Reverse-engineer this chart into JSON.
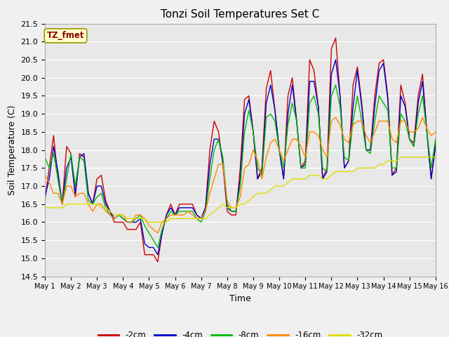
{
  "title": "Tonzi Soil Temperatures Set C",
  "xlabel": "Time",
  "ylabel": "Soil Temperature (C)",
  "ylim": [
    14.5,
    21.5
  ],
  "annotation": "TZ_fmet",
  "fig_bg": "#f0f0f0",
  "plot_bg": "#e8e8e8",
  "legend": [
    "-2cm",
    "-4cm",
    "-8cm",
    "-16cm",
    "-32cm"
  ],
  "colors": [
    "#cc0000",
    "#0000cc",
    "#00bb00",
    "#ff8800",
    "#dddd00"
  ],
  "xtick_labels": [
    "May 1",
    "May 2",
    "May 3",
    "May 4",
    "May 5",
    "May 6",
    "May 7",
    "May 8",
    "May 9",
    "May 10",
    "May 11",
    "May 12",
    "May 13",
    "May 14",
    "May 15",
    "May 16"
  ],
  "yticks": [
    14.5,
    15.0,
    15.5,
    16.0,
    16.5,
    17.0,
    17.5,
    18.0,
    18.5,
    19.0,
    19.5,
    20.0,
    20.5,
    21.0,
    21.5
  ],
  "series_2cm": [
    16.6,
    17.5,
    18.4,
    17.2,
    16.5,
    18.1,
    17.9,
    16.7,
    17.9,
    17.8,
    16.8,
    16.5,
    17.2,
    17.3,
    16.6,
    16.3,
    16.0,
    16.0,
    16.0,
    15.8,
    15.8,
    15.8,
    16.0,
    15.1,
    15.1,
    15.1,
    14.9,
    15.7,
    16.2,
    16.5,
    16.2,
    16.5,
    16.5,
    16.5,
    16.5,
    16.2,
    16.1,
    16.4,
    18.0,
    18.8,
    18.5,
    17.6,
    16.3,
    16.2,
    16.2,
    17.5,
    19.4,
    19.5,
    18.5,
    17.2,
    17.5,
    19.7,
    20.2,
    19.1,
    18.0,
    17.2,
    19.5,
    20.0,
    18.8,
    17.5,
    17.7,
    20.5,
    20.2,
    19.2,
    17.2,
    17.5,
    20.8,
    21.1,
    19.5,
    17.5,
    17.7,
    19.8,
    20.3,
    19.3,
    18.0,
    18.0,
    19.5,
    20.4,
    20.5,
    19.5,
    17.3,
    17.5,
    19.8,
    19.3,
    18.3,
    18.2,
    19.5,
    20.1,
    18.5,
    17.2,
    18.2
  ],
  "series_4cm": [
    16.7,
    17.2,
    18.1,
    17.4,
    16.5,
    17.5,
    17.8,
    16.8,
    17.8,
    17.9,
    16.8,
    16.5,
    17.0,
    17.0,
    16.5,
    16.3,
    16.1,
    16.2,
    16.1,
    16.0,
    16.0,
    16.0,
    16.1,
    15.4,
    15.3,
    15.3,
    15.1,
    15.7,
    16.2,
    16.4,
    16.2,
    16.4,
    16.4,
    16.4,
    16.4,
    16.2,
    16.1,
    16.4,
    17.6,
    18.3,
    18.3,
    17.7,
    16.4,
    16.3,
    16.3,
    17.2,
    19.0,
    19.4,
    18.5,
    17.2,
    17.4,
    19.3,
    19.8,
    19.1,
    18.0,
    17.2,
    19.0,
    19.8,
    18.8,
    17.5,
    17.6,
    19.9,
    19.9,
    19.2,
    17.2,
    17.4,
    20.1,
    20.5,
    19.5,
    17.5,
    17.7,
    19.2,
    20.2,
    19.2,
    18.0,
    18.0,
    19.2,
    20.2,
    20.4,
    19.4,
    17.3,
    17.4,
    19.5,
    19.2,
    18.3,
    18.1,
    19.3,
    19.9,
    18.5,
    17.2,
    18.1
  ],
  "series_8cm": [
    17.8,
    17.5,
    17.9,
    17.2,
    16.5,
    17.2,
    17.9,
    17.0,
    17.8,
    17.7,
    16.6,
    16.5,
    16.7,
    16.8,
    16.4,
    16.2,
    16.1,
    16.2,
    16.1,
    16.0,
    16.0,
    16.1,
    16.2,
    15.9,
    15.7,
    15.5,
    15.3,
    15.8,
    16.1,
    16.3,
    16.2,
    16.3,
    16.3,
    16.3,
    16.3,
    16.1,
    16.0,
    16.3,
    17.2,
    18.0,
    18.3,
    17.8,
    16.5,
    16.3,
    16.3,
    17.0,
    18.5,
    19.1,
    18.5,
    17.5,
    17.3,
    18.9,
    19.0,
    18.8,
    18.0,
    17.5,
    18.7,
    19.3,
    18.8,
    17.5,
    17.5,
    19.3,
    19.5,
    19.0,
    17.5,
    17.4,
    19.5,
    19.8,
    19.2,
    17.8,
    17.7,
    18.8,
    19.5,
    18.8,
    18.0,
    17.9,
    18.8,
    19.5,
    19.3,
    19.1,
    17.5,
    17.5,
    19.0,
    18.8,
    18.3,
    18.1,
    19.0,
    19.5,
    18.5,
    17.5,
    18.3
  ],
  "series_16cm": [
    17.3,
    17.1,
    16.8,
    16.8,
    16.5,
    17.0,
    17.0,
    16.7,
    16.8,
    16.8,
    16.5,
    16.3,
    16.5,
    16.5,
    16.3,
    16.2,
    16.1,
    16.2,
    16.2,
    16.0,
    16.0,
    16.2,
    16.2,
    16.1,
    15.9,
    15.8,
    15.7,
    16.0,
    16.1,
    16.2,
    16.2,
    16.2,
    16.2,
    16.3,
    16.2,
    16.1,
    16.1,
    16.3,
    16.8,
    17.2,
    17.6,
    17.6,
    16.6,
    16.4,
    16.4,
    16.7,
    17.5,
    17.6,
    18.0,
    17.7,
    17.2,
    17.8,
    18.2,
    18.3,
    18.0,
    17.7,
    18.0,
    18.3,
    18.3,
    18.1,
    17.8,
    18.5,
    18.5,
    18.4,
    18.0,
    17.8,
    18.8,
    18.9,
    18.7,
    18.3,
    18.2,
    18.7,
    18.8,
    18.8,
    18.4,
    18.2,
    18.5,
    18.8,
    18.8,
    18.8,
    18.3,
    18.2,
    18.8,
    18.8,
    18.5,
    18.5,
    18.6,
    18.9,
    18.6,
    18.4,
    18.5
  ],
  "series_32cm": [
    16.4,
    16.4,
    16.4,
    16.4,
    16.4,
    16.5,
    16.5,
    16.5,
    16.5,
    16.5,
    16.5,
    16.5,
    16.5,
    16.4,
    16.4,
    16.3,
    16.2,
    16.2,
    16.2,
    16.1,
    16.1,
    16.1,
    16.1,
    16.1,
    16.0,
    16.0,
    16.0,
    16.0,
    16.0,
    16.1,
    16.1,
    16.1,
    16.1,
    16.1,
    16.1,
    16.1,
    16.1,
    16.1,
    16.2,
    16.3,
    16.4,
    16.5,
    16.4,
    16.4,
    16.4,
    16.5,
    16.5,
    16.6,
    16.7,
    16.8,
    16.8,
    16.8,
    16.9,
    17.0,
    17.0,
    17.0,
    17.1,
    17.2,
    17.2,
    17.2,
    17.2,
    17.3,
    17.3,
    17.3,
    17.2,
    17.2,
    17.3,
    17.4,
    17.4,
    17.4,
    17.4,
    17.4,
    17.5,
    17.5,
    17.5,
    17.5,
    17.5,
    17.6,
    17.6,
    17.7,
    17.7,
    17.7,
    17.8,
    17.8,
    17.8,
    17.8,
    17.8,
    17.8,
    17.8,
    17.8,
    17.8
  ]
}
